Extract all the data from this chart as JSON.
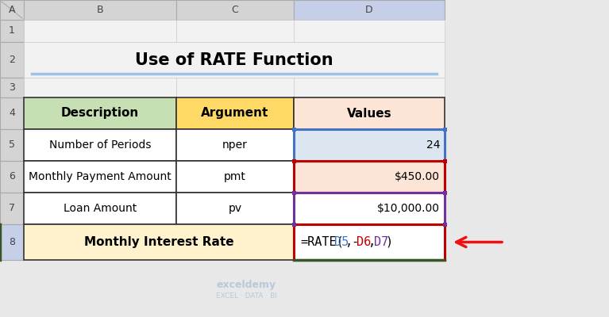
{
  "title": "Use of RATE Function",
  "col_labels": [
    "A",
    "B",
    "C",
    "D"
  ],
  "row_labels": [
    "1",
    "2",
    "3",
    "4",
    "5",
    "6",
    "7",
    "8"
  ],
  "header_desc": "Description",
  "header_arg": "Argument",
  "header_val": "Values",
  "r5": [
    "Number of Periods",
    "nper",
    "24"
  ],
  "r6": [
    "Monthly Payment Amount",
    "pmt",
    "$450.00"
  ],
  "r7": [
    "Loan Amount",
    "pv",
    "$10,000.00"
  ],
  "r8_left": "Monthly Interest Rate",
  "formula_segments": [
    [
      "=RATE(",
      "#000000"
    ],
    [
      "D5",
      "#4472c4"
    ],
    [
      ",-",
      "#000000"
    ],
    [
      "D6",
      "#c00000"
    ],
    [
      ",",
      "#000000"
    ],
    [
      "D7",
      "#7030a0"
    ],
    [
      ")",
      "#000000"
    ]
  ],
  "bg_gray": "#e8e8e8",
  "bg_white": "#ffffff",
  "bg_light_gray": "#f2f2f2",
  "col_header_bg": "#d4d4d4",
  "col_D_header_bg": "#c5cfe8",
  "row8_header_bg": "#c5cfe8",
  "row8_left_border": "#375623",
  "hdr_desc_bg": "#c6e0b4",
  "hdr_arg_bg": "#ffd966",
  "hdr_val_bg": "#fce4d6",
  "r5_val_bg": "#dce6f1",
  "r6_val_bg": "#fce4d6",
  "r7_val_bg": "#ffffff",
  "r8_left_bg": "#fff2cc",
  "r8_val_bg": "#ffffff",
  "blue_border": "#4472c4",
  "red_border": "#c00000",
  "purple_border": "#7030a0",
  "green_border": "#375623",
  "arrow_color": "#ee1111",
  "cell_edge": "#888888",
  "thick_edge": "#333333",
  "watermark_color": "#b0c4d8",
  "watermark_text1": "exceldemy",
  "watermark_text2": "EXCEL · DATA · BI",
  "title_underline_color": "#9dc3e6"
}
